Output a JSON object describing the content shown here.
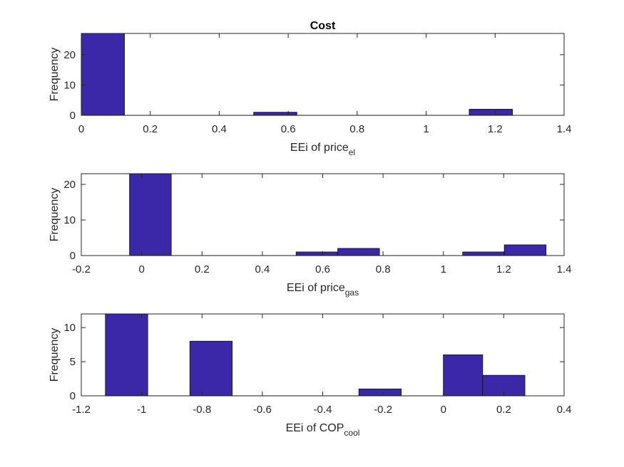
{
  "chart_data": [
    {
      "type": "bar",
      "title": "Cost",
      "xlabel": "EEi of price",
      "xlabel_sub": "el",
      "ylabel": "Frequency",
      "xlim": [
        0,
        1.4
      ],
      "ylim": [
        0,
        27
      ],
      "xticks": [
        "0",
        "0.2",
        "0.4",
        "0.6",
        "0.8",
        "1",
        "1.2",
        "1.4"
      ],
      "yticks": [
        "0",
        "10",
        "20"
      ],
      "bin_edges": [
        0,
        0.125,
        0.25,
        0.375,
        0.5,
        0.625,
        0.75,
        0.875,
        1.0,
        1.125,
        1.25
      ],
      "counts": [
        27,
        0,
        0,
        0,
        1,
        0,
        0,
        0,
        0,
        2
      ],
      "bar_color": "#3b28a8"
    },
    {
      "type": "bar",
      "title": "",
      "xlabel": "EEi of price",
      "xlabel_sub": "gas",
      "ylabel": "Frequency",
      "xlim": [
        -0.2,
        1.4
      ],
      "ylim": [
        0,
        23
      ],
      "xticks": [
        "-0.2",
        "0",
        "0.2",
        "0.4",
        "0.6",
        "0.8",
        "1",
        "1.2",
        "1.4"
      ],
      "yticks": [
        "0",
        "10",
        "20"
      ],
      "bin_edges": [
        -0.04,
        0.098,
        0.236,
        0.374,
        0.512,
        0.65,
        0.788,
        0.926,
        1.064,
        1.202,
        1.34
      ],
      "counts": [
        23,
        0,
        0,
        0,
        1,
        2,
        0,
        0,
        1,
        3
      ],
      "bar_color": "#3b28a8"
    },
    {
      "type": "bar",
      "title": "",
      "xlabel": "EEi of COP",
      "xlabel_sub": "cool",
      "ylabel": "Frequency",
      "xlim": [
        -1.2,
        0.4
      ],
      "ylim": [
        0,
        12
      ],
      "xticks": [
        "-1.2",
        "-1",
        "-0.8",
        "-0.6",
        "-0.4",
        "-0.2",
        "0",
        "0.2",
        "0.4"
      ],
      "yticks": [
        "0",
        "5",
        "10"
      ],
      "bin_edges": [
        -1.12,
        -0.98,
        -0.84,
        -0.7,
        -0.56,
        -0.42,
        -0.28,
        -0.14,
        0.0,
        0.13,
        0.27
      ],
      "counts": [
        12,
        0,
        8,
        0,
        0,
        0,
        1,
        0,
        6,
        3
      ],
      "bar_color": "#3b28a8"
    }
  ]
}
